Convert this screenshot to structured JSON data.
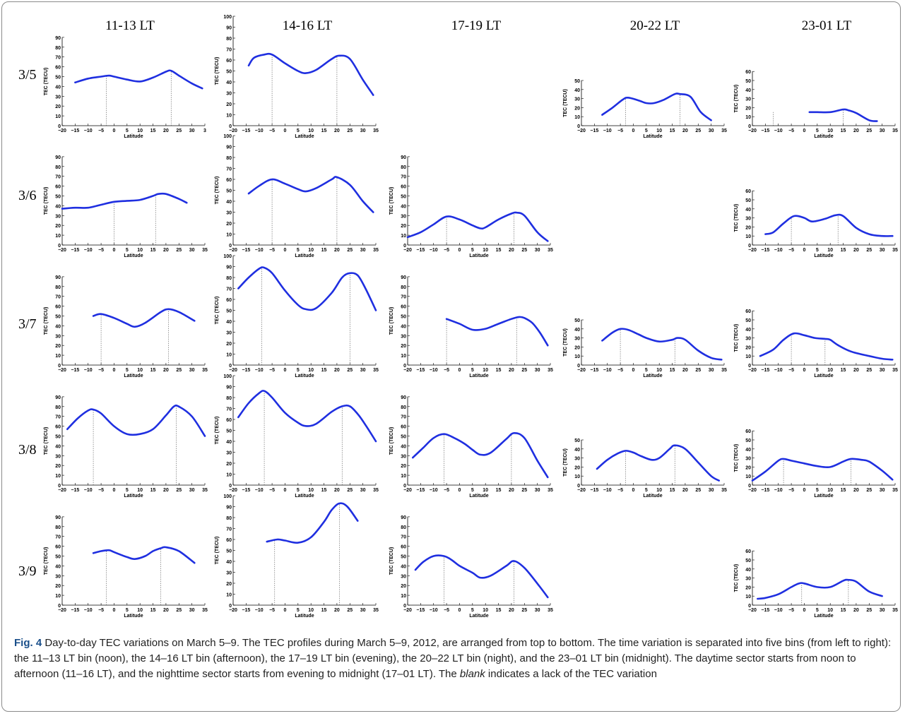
{
  "figure": {
    "columns": [
      "11-13 LT",
      "14-16 LT",
      "17-19 LT",
      "20-22 LT",
      "23-01 LT"
    ],
    "rows": [
      "3/5",
      "3/6",
      "3/7",
      "3/8",
      "3/9"
    ]
  },
  "caption": {
    "label": "Fig. 4",
    "text_a": " Day-to-day TEC variations on March 5–9. The TEC profiles during March 5–9, 2012, are arranged from top to bottom. The time variation is separated into five bins (from left to right): the 11–13 LT bin (noon), the 14–16 LT bin (afternoon), the 17–19 LT bin (evening), the 20–22 LT bin (night), and the 23–01 LT bin (midnight). The daytime sector starts from noon to afternoon (11–16 LT), and the nighttime sector starts from evening to midnight (17–01 LT). The ",
    "emph": "blank",
    "text_b": " indicates a lack of the TEC variation"
  },
  "chart_data": [
    {
      "type": "line",
      "row": "3/5",
      "column": "11-13 LT",
      "xlabel": "Latitude",
      "ylabel": "TEC (TECU)",
      "ylim": [
        0,
        90
      ],
      "xlim": [
        -20,
        35
      ],
      "xticks": [
        "−20",
        "−15",
        "−10",
        "−5",
        "0",
        "5",
        "10",
        "15",
        "20",
        "25",
        "30",
        "3"
      ],
      "series_color": "#1f2fe0",
      "x": [
        -15,
        -10,
        -5,
        -2,
        0,
        5,
        10,
        15,
        20,
        22,
        25,
        30,
        34
      ],
      "y": [
        44,
        48,
        50,
        51,
        50,
        47,
        45,
        49,
        55,
        56,
        51,
        43,
        38
      ],
      "markers": [
        -3,
        22
      ]
    },
    {
      "type": "line",
      "row": "3/5",
      "column": "14-16 LT",
      "xlabel": "Latitude",
      "ylabel": "TEC (TECU)",
      "ylim": [
        0,
        100
      ],
      "xlim": [
        -20,
        35
      ],
      "series_color": "#1f2fe0",
      "x": [
        -14,
        -12,
        -8,
        -5,
        0,
        5,
        8,
        12,
        18,
        21,
        25,
        30,
        34
      ],
      "y": [
        55,
        62,
        65,
        65,
        57,
        50,
        48,
        51,
        61,
        64,
        61,
        42,
        28
      ],
      "markers": [
        -5,
        20
      ]
    },
    {
      "type": "line",
      "row": "3/5",
      "column": "20-22 LT",
      "xlabel": "Latitude",
      "ylabel": "TEC (TECU)",
      "ylim": [
        0,
        50
      ],
      "xlim": [
        -20,
        35
      ],
      "series_color": "#1f2fe0",
      "x": [
        -12,
        -8,
        -4,
        -2,
        2,
        5,
        8,
        12,
        16,
        18,
        22,
        26,
        30
      ],
      "y": [
        12,
        20,
        29,
        31,
        28,
        25,
        25,
        29,
        35,
        35,
        32,
        15,
        6
      ],
      "markers": [
        -3,
        18
      ]
    },
    {
      "type": "line",
      "row": "3/5",
      "column": "23-01 LT",
      "xlabel": "Latitude",
      "ylabel": "TEC (TECU)",
      "ylim": [
        0,
        60
      ],
      "xlim": [
        -20,
        35
      ],
      "series_color": "#1f2fe0",
      "x": [
        2,
        5,
        10,
        15,
        17,
        20,
        25,
        28
      ],
      "y": [
        15,
        15,
        15,
        18,
        17,
        14,
        6,
        5
      ],
      "markers": [
        -12,
        15
      ]
    },
    {
      "type": "line",
      "row": "3/6",
      "column": "11-13 LT",
      "xlabel": "Latitude",
      "ylabel": "TEC (TECU)",
      "ylim": [
        0,
        90
      ],
      "xlim": [
        -20,
        35
      ],
      "series_color": "#1f2fe0",
      "x": [
        -20,
        -15,
        -10,
        -5,
        0,
        5,
        10,
        15,
        17,
        20,
        25,
        28
      ],
      "y": [
        37,
        38,
        38,
        41,
        44,
        45,
        46,
        50,
        52,
        52,
        47,
        43
      ],
      "markers": [
        0,
        16
      ]
    },
    {
      "type": "line",
      "row": "3/6",
      "column": "14-16 LT",
      "xlabel": "Latitude",
      "ylabel": "TEC (TECU)",
      "ylim": [
        0,
        100
      ],
      "xlim": [
        -20,
        35
      ],
      "series_color": "#1f2fe0",
      "x": [
        -14,
        -10,
        -5,
        0,
        5,
        8,
        12,
        18,
        20,
        25,
        30,
        34
      ],
      "y": [
        47,
        54,
        60,
        56,
        51,
        49,
        52,
        60,
        62,
        55,
        40,
        30
      ],
      "markers": [
        -5,
        20
      ]
    },
    {
      "type": "line",
      "row": "3/6",
      "column": "17-19 LT",
      "xlabel": "Latitude",
      "ylabel": "TEC (TECU)",
      "ylim": [
        0,
        90
      ],
      "xlim": [
        -20,
        35
      ],
      "series_color": "#1f2fe0",
      "x": [
        -20,
        -15,
        -10,
        -5,
        0,
        5,
        8,
        10,
        15,
        20,
        22,
        25,
        30,
        34
      ],
      "y": [
        8,
        13,
        21,
        29,
        26,
        20,
        17,
        18,
        26,
        32,
        33,
        30,
        13,
        4
      ],
      "markers": [
        -5,
        21
      ]
    },
    {
      "type": "line",
      "row": "3/6",
      "column": "23-01 LT",
      "xlabel": "Latitude",
      "ylabel": "TEC (TECU)",
      "ylim": [
        0,
        60
      ],
      "xlim": [
        -20,
        35
      ],
      "series_color": "#1f2fe0",
      "x": [
        -15,
        -12,
        -8,
        -4,
        0,
        3,
        8,
        12,
        15,
        20,
        25,
        30,
        34
      ],
      "y": [
        12,
        14,
        24,
        32,
        30,
        26,
        29,
        33,
        32,
        19,
        12,
        10,
        10
      ],
      "markers": [
        -5,
        13
      ]
    },
    {
      "type": "line",
      "row": "3/7",
      "column": "11-13 LT",
      "xlabel": "Latitude",
      "ylabel": "TEC (TECU)",
      "ylim": [
        0,
        90
      ],
      "xlim": [
        -20,
        35
      ],
      "series_color": "#1f2fe0",
      "x": [
        -8,
        -5,
        0,
        5,
        8,
        12,
        18,
        21,
        25,
        31
      ],
      "y": [
        50,
        52,
        48,
        42,
        39,
        43,
        54,
        57,
        54,
        45
      ],
      "markers": [
        -5,
        21
      ]
    },
    {
      "type": "line",
      "row": "3/7",
      "column": "14-16 LT",
      "xlabel": "Latitude",
      "ylabel": "TEC (TECU)",
      "ylim": [
        0,
        100
      ],
      "xlim": [
        -20,
        35
      ],
      "series_color": "#1f2fe0",
      "x": [
        -18,
        -14,
        -10,
        -8,
        -5,
        0,
        5,
        8,
        12,
        18,
        22,
        25,
        28,
        31,
        35
      ],
      "y": [
        70,
        80,
        88,
        89,
        84,
        68,
        55,
        51,
        52,
        66,
        80,
        84,
        82,
        70,
        50
      ],
      "markers": [
        -9,
        25
      ]
    },
    {
      "type": "line",
      "row": "3/7",
      "column": "17-19 LT",
      "xlabel": "Latitude",
      "ylabel": "TEC (TECU)",
      "ylim": [
        0,
        90
      ],
      "xlim": [
        -20,
        35
      ],
      "series_color": "#1f2fe0",
      "x": [
        -5,
        0,
        5,
        10,
        15,
        20,
        23,
        25,
        28,
        31,
        34
      ],
      "y": [
        47,
        42,
        36,
        37,
        42,
        47,
        49,
        48,
        43,
        33,
        20
      ],
      "markers": [
        -5,
        22
      ]
    },
    {
      "type": "line",
      "row": "3/7",
      "column": "20-22 LT",
      "xlabel": "Latitude",
      "ylabel": "TEC (TECU)",
      "ylim": [
        0,
        50
      ],
      "xlim": [
        -20,
        35
      ],
      "series_color": "#1f2fe0",
      "x": [
        -12,
        -8,
        -5,
        -2,
        2,
        5,
        10,
        15,
        17,
        20,
        25,
        30,
        34
      ],
      "y": [
        27,
        36,
        40,
        39,
        34,
        30,
        26,
        28,
        30,
        28,
        16,
        8,
        6
      ],
      "markers": [
        -5,
        16
      ]
    },
    {
      "type": "line",
      "row": "3/7",
      "column": "23-01 LT",
      "xlabel": "Latitude",
      "ylabel": "TEC (TECU)",
      "ylim": [
        0,
        60
      ],
      "xlim": [
        -20,
        35
      ],
      "series_color": "#1f2fe0",
      "x": [
        -17,
        -12,
        -8,
        -4,
        0,
        4,
        8,
        10,
        13,
        18,
        25,
        30,
        34
      ],
      "y": [
        10,
        17,
        28,
        35,
        33,
        30,
        29,
        28,
        22,
        15,
        10,
        7,
        6
      ],
      "markers": [
        -5,
        8
      ]
    },
    {
      "type": "line",
      "row": "3/8",
      "column": "11-13 LT",
      "xlabel": "Latitude",
      "ylabel": "TEC (TECU)",
      "ylim": [
        0,
        90
      ],
      "xlim": [
        -20,
        35
      ],
      "series_color": "#1f2fe0",
      "x": [
        -18,
        -14,
        -10,
        -8,
        -5,
        0,
        5,
        10,
        15,
        20,
        23,
        25,
        30,
        35
      ],
      "y": [
        57,
        68,
        76,
        77,
        73,
        60,
        52,
        52,
        57,
        71,
        80,
        80,
        70,
        50
      ],
      "markers": [
        -8,
        24
      ]
    },
    {
      "type": "line",
      "row": "3/8",
      "column": "14-16 LT",
      "xlabel": "Latitude",
      "ylabel": "TEC (TECU)",
      "ylim": [
        0,
        100
      ],
      "xlim": [
        -20,
        35
      ],
      "series_color": "#1f2fe0",
      "x": [
        -18,
        -14,
        -10,
        -8,
        -5,
        0,
        5,
        8,
        12,
        18,
        22,
        25,
        28,
        31,
        35
      ],
      "y": [
        62,
        75,
        84,
        86,
        80,
        66,
        57,
        54,
        56,
        67,
        72,
        72,
        65,
        55,
        40
      ],
      "markers": [
        -8,
        22
      ]
    },
    {
      "type": "line",
      "row": "3/8",
      "column": "17-19 LT",
      "xlabel": "Latitude",
      "ylabel": "TEC (TECU)",
      "ylim": [
        0,
        90
      ],
      "xlim": [
        -20,
        35
      ],
      "series_color": "#1f2fe0",
      "x": [
        -18,
        -14,
        -10,
        -6,
        -2,
        2,
        5,
        8,
        12,
        18,
        21,
        25,
        30,
        34
      ],
      "y": [
        28,
        38,
        48,
        52,
        48,
        42,
        36,
        31,
        33,
        47,
        53,
        48,
        25,
        8
      ],
      "markers": [
        -6,
        20
      ]
    },
    {
      "type": "line",
      "row": "3/8",
      "column": "20-22 LT",
      "xlabel": "Latitude",
      "ylabel": "TEC (TECU)",
      "ylim": [
        0,
        50
      ],
      "xlim": [
        -20,
        35
      ],
      "series_color": "#1f2fe0",
      "x": [
        -14,
        -10,
        -6,
        -3,
        0,
        3,
        7,
        10,
        14,
        16,
        20,
        25,
        30,
        33
      ],
      "y": [
        18,
        28,
        35,
        38,
        36,
        32,
        28,
        30,
        40,
        44,
        40,
        25,
        10,
        5
      ],
      "markers": [
        -3,
        16
      ]
    },
    {
      "type": "line",
      "row": "3/8",
      "column": "23-01 LT",
      "xlabel": "Latitude",
      "ylabel": "TEC (TECU)",
      "ylim": [
        0,
        60
      ],
      "xlim": [
        -20,
        35
      ],
      "series_color": "#1f2fe0",
      "x": [
        -20,
        -15,
        -10,
        -8,
        -5,
        0,
        5,
        10,
        15,
        18,
        22,
        25,
        30,
        34
      ],
      "y": [
        5,
        15,
        27,
        29,
        27,
        24,
        21,
        20,
        26,
        29,
        28,
        26,
        16,
        6
      ],
      "markers": [
        -8,
        18
      ]
    },
    {
      "type": "line",
      "row": "3/9",
      "column": "11-13 LT",
      "xlabel": "Latitude",
      "ylabel": "TEC (TECU)",
      "ylim": [
        0,
        90
      ],
      "xlim": [
        -20,
        35
      ],
      "series_color": "#1f2fe0",
      "x": [
        -8,
        -5,
        -2,
        0,
        5,
        8,
        12,
        15,
        18,
        20,
        25,
        31
      ],
      "y": [
        53,
        55,
        56,
        54,
        49,
        47,
        50,
        55,
        58,
        59,
        55,
        43
      ],
      "markers": [
        -3,
        18
      ]
    },
    {
      "type": "line",
      "row": "3/9",
      "column": "14-16 LT",
      "xlabel": "Latitude",
      "ylabel": "TEC (TECU)",
      "ylim": [
        0,
        100
      ],
      "xlim": [
        -20,
        35
      ],
      "series_color": "#1f2fe0",
      "x": [
        -7,
        -3,
        0,
        5,
        10,
        15,
        18,
        21,
        24,
        28
      ],
      "y": [
        58,
        60,
        59,
        57,
        62,
        76,
        87,
        93,
        90,
        77
      ],
      "markers": [
        -4,
        21
      ]
    },
    {
      "type": "line",
      "row": "3/9",
      "column": "17-19 LT",
      "xlabel": "Latitude",
      "ylabel": "TEC (TECU)",
      "ylim": [
        0,
        90
      ],
      "xlim": [
        -20,
        35
      ],
      "series_color": "#1f2fe0",
      "x": [
        -17,
        -14,
        -10,
        -6,
        -3,
        0,
        5,
        8,
        12,
        18,
        21,
        25,
        30,
        34
      ],
      "y": [
        36,
        44,
        50,
        50,
        46,
        40,
        33,
        28,
        30,
        40,
        45,
        38,
        22,
        8
      ],
      "markers": [
        -6,
        21
      ]
    },
    {
      "type": "line",
      "row": "3/9",
      "column": "23-01 LT",
      "xlabel": "Latitude",
      "ylabel": "TEC (TECU)",
      "ylim": [
        0,
        60
      ],
      "xlim": [
        -20,
        35
      ],
      "series_color": "#1f2fe0",
      "x": [
        -18,
        -15,
        -10,
        -5,
        -2,
        0,
        5,
        10,
        15,
        17,
        20,
        25,
        30
      ],
      "y": [
        7,
        8,
        12,
        20,
        24,
        24,
        20,
        20,
        27,
        28,
        26,
        15,
        10
      ],
      "markers": [
        -1,
        17
      ]
    }
  ]
}
